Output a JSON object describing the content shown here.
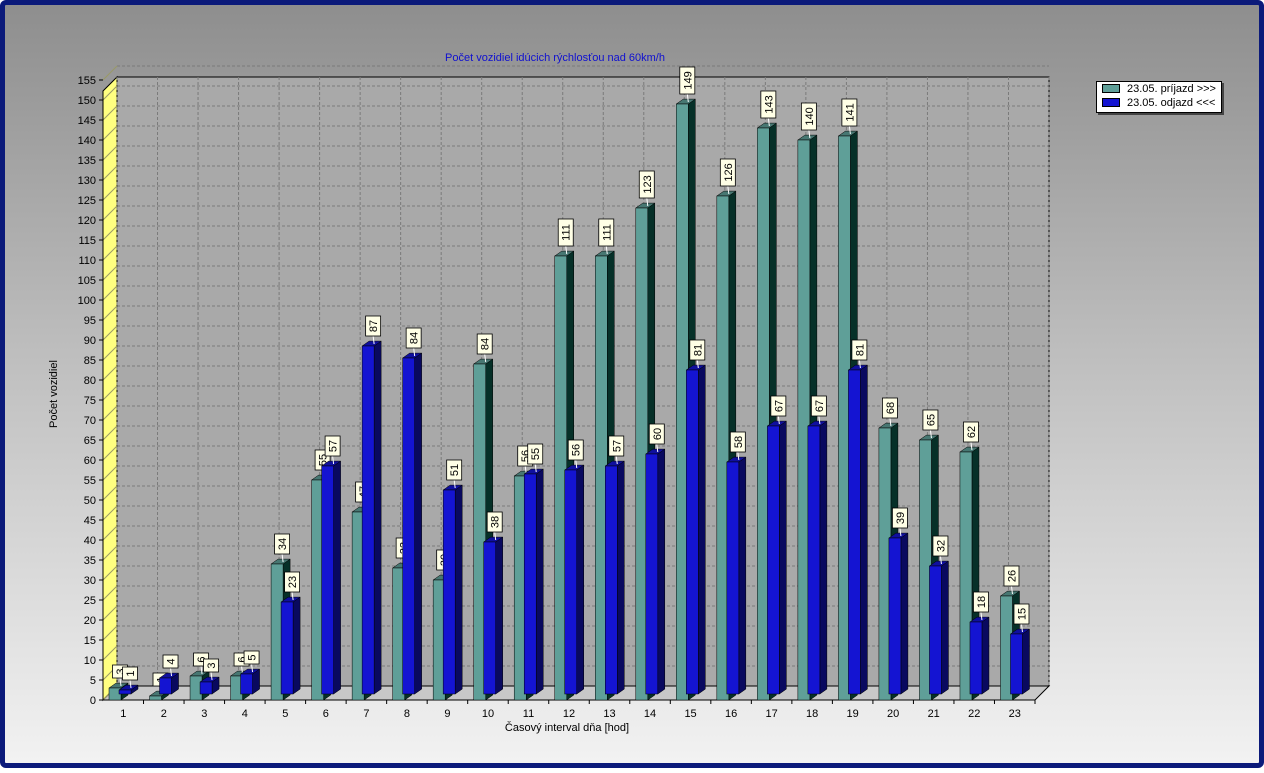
{
  "chart_data": {
    "type": "bar",
    "title": "Počet vozidiel idúcich rýchlosťou nad 60km/h",
    "xlabel": "Časový interval dňa [hod]",
    "ylabel": "Počet vozidiel",
    "ylim": [
      0,
      155
    ],
    "ytick_step": 5,
    "grid": true,
    "legend_position": "top-right",
    "categories": [
      "1",
      "2",
      "3",
      "4",
      "5",
      "6",
      "7",
      "8",
      "9",
      "10",
      "11",
      "12",
      "13",
      "14",
      "15",
      "16",
      "17",
      "18",
      "19",
      "20",
      "21",
      "22",
      "23"
    ],
    "series": [
      {
        "name": "23.05.  príjazd >>>",
        "color": "#5f9f98",
        "values": [
          3,
          1,
          6,
          6,
          34,
          55,
          47,
          33,
          30,
          84,
          56,
          111,
          111,
          123,
          149,
          126,
          143,
          140,
          141,
          68,
          65,
          62,
          26
        ]
      },
      {
        "name": "23.05.  odjazd <<<",
        "color": "#1414d2",
        "values": [
          1,
          4,
          3,
          5,
          23,
          57,
          87,
          84,
          51,
          38,
          55,
          56,
          57,
          60,
          81,
          58,
          67,
          67,
          81,
          39,
          32,
          18,
          15
        ]
      }
    ]
  }
}
